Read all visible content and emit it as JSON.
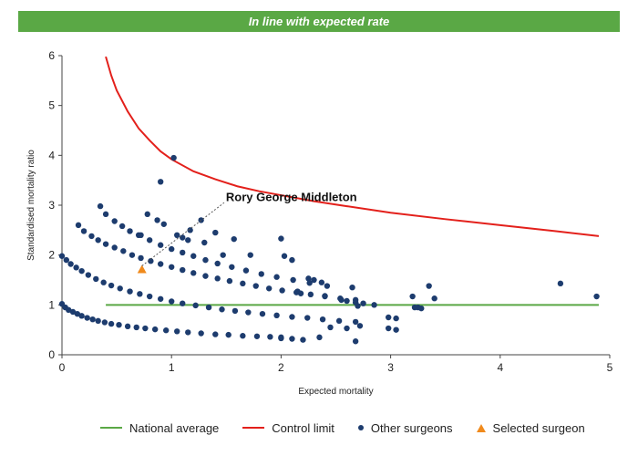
{
  "banner": {
    "text": "In line with expected rate",
    "color": "#5aa845"
  },
  "chart_data": {
    "type": "scatter",
    "xlabel": "Expected mortality",
    "ylabel": "Standardised mortality ratio",
    "xlim": [
      0,
      5
    ],
    "ylim": [
      0,
      6
    ],
    "x_ticks": [
      0,
      1,
      2,
      3,
      4,
      5
    ],
    "y_ticks": [
      0,
      1,
      2,
      3,
      4,
      5,
      6
    ],
    "grid": false,
    "legend_position": "bottom",
    "annotation": {
      "text": "Rory George Middleton",
      "x": 0.73,
      "y": 1.71
    },
    "series": [
      {
        "name": "National average",
        "kind": "line",
        "color": "#5aa845",
        "x": [
          0.4,
          4.9
        ],
        "y": [
          1,
          1
        ]
      },
      {
        "name": "Control limit",
        "kind": "line",
        "color": "#e3201b",
        "x": [
          0.4,
          0.45,
          0.5,
          0.6,
          0.7,
          0.8,
          0.9,
          1.0,
          1.2,
          1.4,
          1.6,
          1.8,
          2.0,
          2.3,
          2.6,
          3.0,
          3.5,
          4.0,
          4.5,
          4.9
        ],
        "y": [
          5.98,
          5.6,
          5.3,
          4.88,
          4.54,
          4.3,
          4.08,
          3.92,
          3.68,
          3.52,
          3.38,
          3.28,
          3.2,
          3.08,
          2.98,
          2.85,
          2.72,
          2.6,
          2.48,
          2.38
        ]
      },
      {
        "name": "Other surgeons",
        "kind": "scatter",
        "color": "#1d3c6e",
        "x": [
          0.0,
          0.03,
          0.06,
          0.1,
          0.14,
          0.18,
          0.23,
          0.28,
          0.33,
          0.39,
          0.45,
          0.52,
          0.6,
          0.68,
          0.76,
          0.85,
          0.95,
          1.05,
          1.15,
          1.27,
          1.4,
          1.52,
          1.65,
          1.78,
          1.9,
          2.0,
          0.0,
          0.04,
          0.08,
          0.13,
          0.18,
          0.24,
          0.31,
          0.38,
          0.45,
          0.53,
          0.62,
          0.71,
          0.8,
          0.9,
          1.0,
          1.1,
          1.22,
          1.34,
          1.46,
          1.58,
          1.7,
          1.83,
          1.96,
          2.1,
          2.24,
          2.38,
          2.53,
          2.68,
          0.15,
          0.2,
          0.27,
          0.33,
          0.4,
          0.48,
          0.56,
          0.64,
          0.72,
          0.81,
          0.9,
          1.0,
          1.1,
          1.2,
          1.31,
          1.42,
          1.53,
          1.65,
          1.77,
          1.89,
          2.01,
          2.14,
          2.27,
          2.4,
          2.54,
          2.68,
          0.35,
          0.4,
          0.48,
          0.55,
          0.62,
          0.7,
          0.8,
          0.9,
          1.0,
          1.1,
          1.2,
          1.31,
          1.42,
          1.55,
          1.68,
          1.82,
          1.96,
          2.11,
          2.26,
          2.42,
          0.72,
          0.78,
          0.87,
          0.93,
          1.02,
          1.1,
          1.17,
          1.27,
          1.4,
          1.57,
          1.72,
          0.9,
          1.05,
          1.15,
          1.3,
          1.47,
          2.0,
          2.03,
          2.1,
          2.15,
          2.18,
          2.25,
          2.3,
          2.37,
          2.4,
          2.55,
          2.6,
          2.65,
          2.68,
          2.7,
          2.75,
          2.85,
          2.98,
          3.05,
          3.2,
          3.25,
          3.35,
          3.4,
          4.55,
          4.88,
          2.0,
          2.1,
          2.2,
          2.35,
          2.45,
          2.6,
          2.68,
          2.72,
          2.98,
          3.05,
          3.22,
          3.28
        ],
        "y": [
          1.02,
          0.95,
          0.9,
          0.86,
          0.82,
          0.78,
          0.74,
          0.71,
          0.68,
          0.65,
          0.62,
          0.6,
          0.57,
          0.55,
          0.53,
          0.51,
          0.49,
          0.47,
          0.45,
          0.43,
          0.41,
          0.4,
          0.38,
          0.37,
          0.36,
          0.35,
          1.98,
          1.9,
          1.82,
          1.75,
          1.68,
          1.6,
          1.52,
          1.45,
          1.39,
          1.33,
          1.27,
          1.22,
          1.17,
          1.12,
          1.07,
          1.03,
          0.99,
          0.95,
          0.91,
          0.88,
          0.85,
          0.82,
          0.79,
          0.76,
          0.74,
          0.71,
          0.68,
          0.66,
          2.6,
          2.48,
          2.38,
          2.3,
          2.22,
          2.15,
          2.08,
          2.0,
          1.94,
          1.88,
          1.82,
          1.76,
          1.7,
          1.64,
          1.58,
          1.53,
          1.48,
          1.43,
          1.38,
          1.33,
          1.29,
          1.25,
          1.21,
          1.17,
          1.13,
          1.1,
          2.98,
          2.82,
          2.68,
          2.58,
          2.48,
          2.4,
          2.3,
          2.2,
          2.12,
          2.05,
          1.98,
          1.9,
          1.83,
          1.76,
          1.69,
          1.62,
          1.56,
          1.5,
          1.44,
          1.38,
          2.4,
          2.82,
          2.7,
          2.62,
          3.95,
          2.35,
          2.5,
          2.7,
          2.45,
          2.32,
          2.0,
          3.47,
          2.4,
          2.3,
          2.25,
          2.0,
          2.33,
          1.98,
          1.9,
          1.27,
          1.23,
          1.53,
          1.5,
          1.45,
          1.18,
          1.1,
          1.08,
          1.35,
          1.05,
          0.98,
          1.03,
          1.0,
          0.75,
          0.73,
          1.17,
          0.95,
          1.38,
          1.13,
          1.43,
          1.17,
          0.33,
          0.32,
          0.3,
          0.35,
          0.55,
          0.53,
          0.27,
          0.58,
          0.53,
          0.5,
          0.95,
          0.93
        ]
      },
      {
        "name": "Selected surgeon",
        "kind": "marker",
        "color": "#f08a1c",
        "x": [
          0.73
        ],
        "y": [
          1.71
        ]
      }
    ]
  },
  "legend": [
    {
      "label": "National average",
      "kind": "line",
      "color": "#5aa845"
    },
    {
      "label": "Control limit",
      "kind": "line",
      "color": "#e3201b"
    },
    {
      "label": "Other surgeons",
      "kind": "dot",
      "color": "#1d3c6e"
    },
    {
      "label": "Selected surgeon",
      "kind": "triangle",
      "color": "#f08a1c"
    }
  ]
}
